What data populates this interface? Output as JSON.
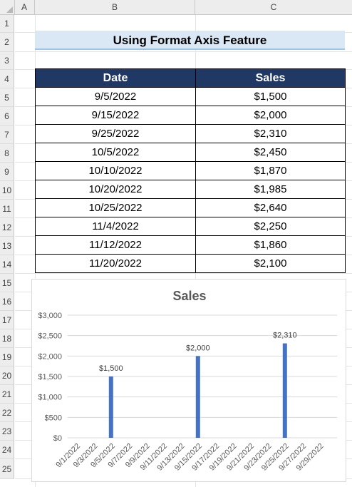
{
  "columns": [
    "A",
    "B",
    "C"
  ],
  "rows": [
    "1",
    "2",
    "3",
    "4",
    "5",
    "6",
    "7",
    "8",
    "9",
    "10",
    "11",
    "12",
    "13",
    "14",
    "15",
    "16",
    "17",
    "18",
    "19",
    "20",
    "21",
    "22",
    "23",
    "24",
    "25"
  ],
  "title": "Using Format Axis Feature",
  "table": {
    "headers": [
      "Date",
      "Sales"
    ],
    "rows": [
      [
        "9/5/2022",
        "$1,500"
      ],
      [
        "9/15/2022",
        "$2,000"
      ],
      [
        "9/25/2022",
        "$2,310"
      ],
      [
        "10/5/2022",
        "$2,450"
      ],
      [
        "10/10/2022",
        "$1,870"
      ],
      [
        "10/20/2022",
        "$1,985"
      ],
      [
        "10/25/2022",
        "$2,640"
      ],
      [
        "11/4/2022",
        "$2,250"
      ],
      [
        "11/12/2022",
        "$1,860"
      ],
      [
        "11/20/2022",
        "$2,100"
      ]
    ]
  },
  "colors": {
    "header_bg": "#203864",
    "title_bg": "#dae7f4",
    "bar": "#4472c4"
  },
  "chart_data": {
    "type": "bar",
    "title": "Sales",
    "x": [
      "9/1/2022",
      "9/3/2022",
      "9/5/2022",
      "9/7/2022",
      "9/9/2022",
      "9/11/2022",
      "9/13/2022",
      "9/15/2022",
      "9/17/2022",
      "9/19/2022",
      "9/21/2022",
      "9/23/2022",
      "9/25/2022",
      "9/27/2022",
      "9/29/2022"
    ],
    "bars": [
      {
        "date": "9/5/2022",
        "value": 1500,
        "label": "$1,500"
      },
      {
        "date": "9/15/2022",
        "value": 2000,
        "label": "$2,000"
      },
      {
        "date": "9/25/2022",
        "value": 2310,
        "label": "$2,310"
      }
    ],
    "yticks": [
      "$0",
      "$500",
      "$1,000",
      "$1,500",
      "$2,000",
      "$2,500",
      "$3,000"
    ],
    "ylim": [
      0,
      3000
    ],
    "grid": true,
    "legend": "none"
  }
}
